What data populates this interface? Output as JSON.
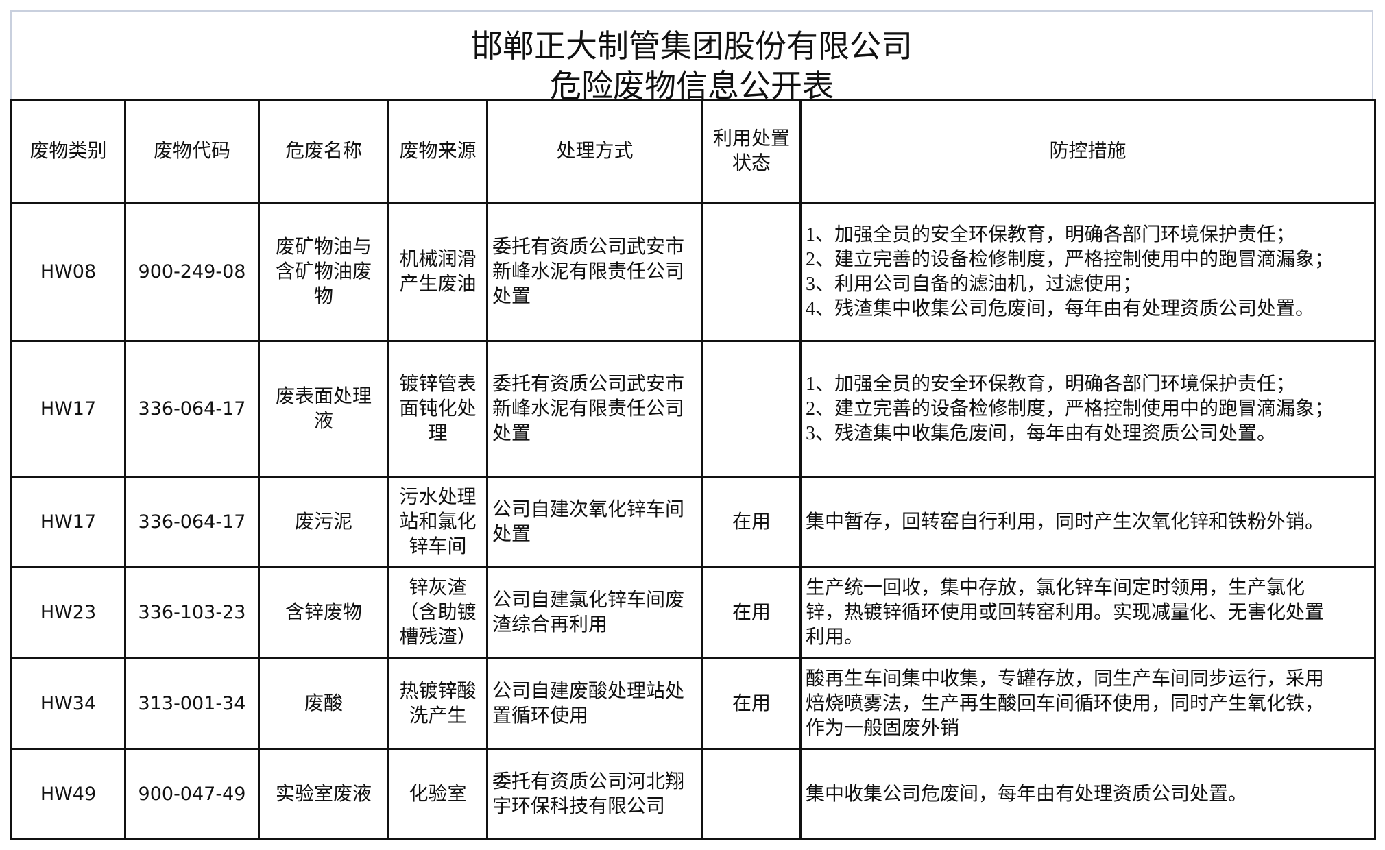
{
  "title": {
    "line1": "邯郸正大制管集团股份有限公司",
    "line2": "危险废物信息公开表"
  },
  "table": {
    "headers": [
      "废物类别",
      "废物代码",
      "危废名称",
      "废物来源",
      "处理方式",
      "利用处置\n状态",
      "防控措施"
    ],
    "rows": [
      {
        "category": "HW08",
        "code": "900-249-08",
        "name": "废矿物油与\n含矿物油废\n物",
        "source": "机械润滑\n产生废油",
        "method": "委托有资质公司武安市\n新峰水泥有限责任公司\n处置",
        "status": "",
        "measures": "1、加强全员的安全环保教育，明确各部门环境保护责任；\n2、建立完善的设备检修制度，严格控制使用中的跑冒滴漏象；\n3、利用公司自备的滤油机，过滤使用；\n4、残渣集中收集公司危废间，每年由有处理资质公司处置。"
      },
      {
        "category": "HW17",
        "code": "336-064-17",
        "name": "废表面处理\n液",
        "source": "镀锌管表\n面钝化处\n理",
        "method": "委托有资质公司武安市\n新峰水泥有限责任公司\n处置",
        "status": "",
        "measures": "1、加强全员的安全环保教育，明确各部门环境保护责任；\n2、建立完善的设备检修制度，严格控制使用中的跑冒滴漏象；\n3、残渣集中收集危废间，每年由有处理资质公司处置。"
      },
      {
        "category": "HW17",
        "code": "336-064-17",
        "name": "废污泥",
        "source": "污水处理\n站和氯化\n锌车间",
        "method": "公司自建次氧化锌车间\n处置",
        "status": "在用",
        "measures": "集中暂存，回转窑自行利用，同时产生次氧化锌和铁粉外销。"
      },
      {
        "category": "HW23",
        "code": "336-103-23",
        "name": "含锌废物",
        "source": "锌灰渣\n（含助镀\n槽残渣）",
        "method": "公司自建氯化锌车间废\n渣综合再利用",
        "status": "在用",
        "measures": "生产统一回收，集中存放，氯化锌车间定时领用，生产氯化\n锌，热镀锌循环使用或回转窑利用。实现减量化、无害化处置\n利用。"
      },
      {
        "category": "HW34",
        "code": "313-001-34",
        "name": "废酸",
        "source": "热镀锌酸\n洗产生",
        "method": "公司自建废酸处理站处\n置循环使用",
        "status": "在用",
        "measures": "酸再生车间集中收集，专罐存放，同生产车间同步运行，采用\n焙烧喷雾法，生产再生酸回车间循环使用，同时产生氧化铁，\n作为一般固废外销"
      },
      {
        "category": "HW49",
        "code": "900-047-49",
        "name": "实验室废液",
        "source": "化验室",
        "method": "委托有资质公司河北翔\n宇环保科技有限公司",
        "status": "",
        "measures": "集中收集公司危废间，每年由有处理资质公司处置。"
      }
    ]
  }
}
